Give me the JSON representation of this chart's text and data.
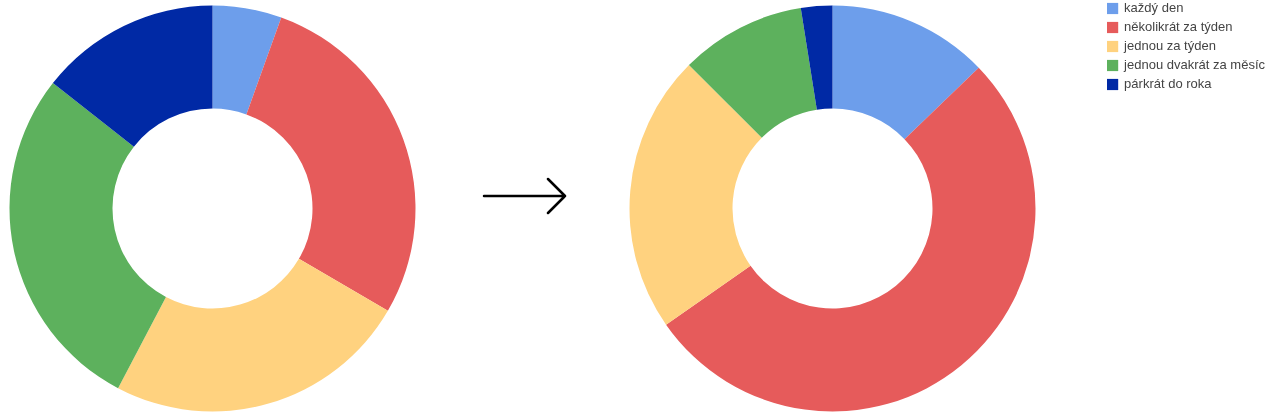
{
  "chart_data": [
    {
      "type": "donut",
      "categories": [
        "každý den",
        "několikrát za týden",
        "jednou za týden",
        "jednou dvakrát za měsíc",
        "párkrát do roka"
      ],
      "values": [
        5.5,
        27.9,
        24.3,
        27.9,
        14.4
      ],
      "colors": [
        "#6d9eeb",
        "#e65b5b",
        "#ffd27f",
        "#5db15d",
        "#0029a5"
      ],
      "legend": "top right"
    },
    {
      "type": "donut",
      "categories": [
        null,
        null,
        null,
        null,
        null
      ],
      "values": [
        12.8,
        52.5,
        22.2,
        10.0,
        2.5
      ],
      "colors": [
        "#6d9eeb",
        "#e65b5b",
        "#ffd27f",
        "#5db15d",
        "#0029a5"
      ]
    }
  ]
}
